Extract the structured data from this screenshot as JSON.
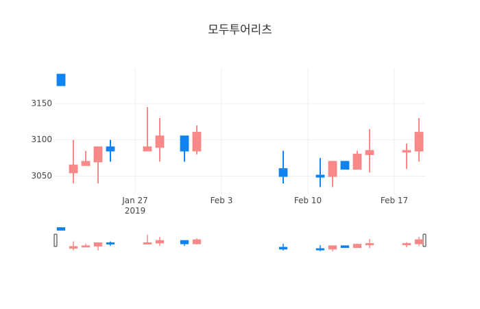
{
  "chart_data": {
    "type": "candlestick",
    "title": "모두투어리츠",
    "x": [
      "2019-01-21",
      "2019-01-22",
      "2019-01-23",
      "2019-01-24",
      "2019-01-25",
      "2019-01-28",
      "2019-01-29",
      "2019-01-31",
      "2019-02-01",
      "2019-02-08",
      "2019-02-11",
      "2019-02-12",
      "2019-02-13",
      "2019-02-14",
      "2019-02-15",
      "2019-02-18",
      "2019-02-19"
    ],
    "open": [
      3190,
      3055,
      3065,
      3070,
      3090,
      3085,
      3090,
      3105,
      3085,
      3060,
      3051,
      3050,
      3070,
      3060,
      3080,
      3084,
      3085
    ],
    "high": [
      3190,
      3100,
      3085,
      3090,
      3100,
      3145,
      3130,
      3105,
      3120,
      3085,
      3075,
      3070,
      3070,
      3085,
      3115,
      3095,
      3130
    ],
    "low": [
      3175,
      3040,
      3065,
      3040,
      3070,
      3085,
      3070,
      3070,
      3080,
      3040,
      3035,
      3035,
      3060,
      3060,
      3055,
      3060,
      3070
    ],
    "close": [
      3175,
      3065,
      3070,
      3090,
      3085,
      3090,
      3105,
      3085,
      3110,
      3050,
      3049,
      3070,
      3060,
      3080,
      3085,
      3085,
      3110
    ],
    "increasing_color": "#f98888",
    "decreasing_color": "#1083f2",
    "xlim": [
      "2019-01-20T12:00Z",
      "2019-02-19T12:00Z"
    ],
    "xticks": [
      {
        "value": "2019-01-27",
        "label": "Jan 27\n2019"
      },
      {
        "value": "2019-02-03",
        "label": "Feb 3"
      },
      {
        "value": "2019-02-10",
        "label": "Feb 10"
      },
      {
        "value": "2019-02-17",
        "label": "Feb 17"
      }
    ],
    "ylim": [
      3025,
      3198
    ],
    "yticks": [
      3050,
      3100,
      3150
    ],
    "grid": true,
    "rangeslider": true
  }
}
